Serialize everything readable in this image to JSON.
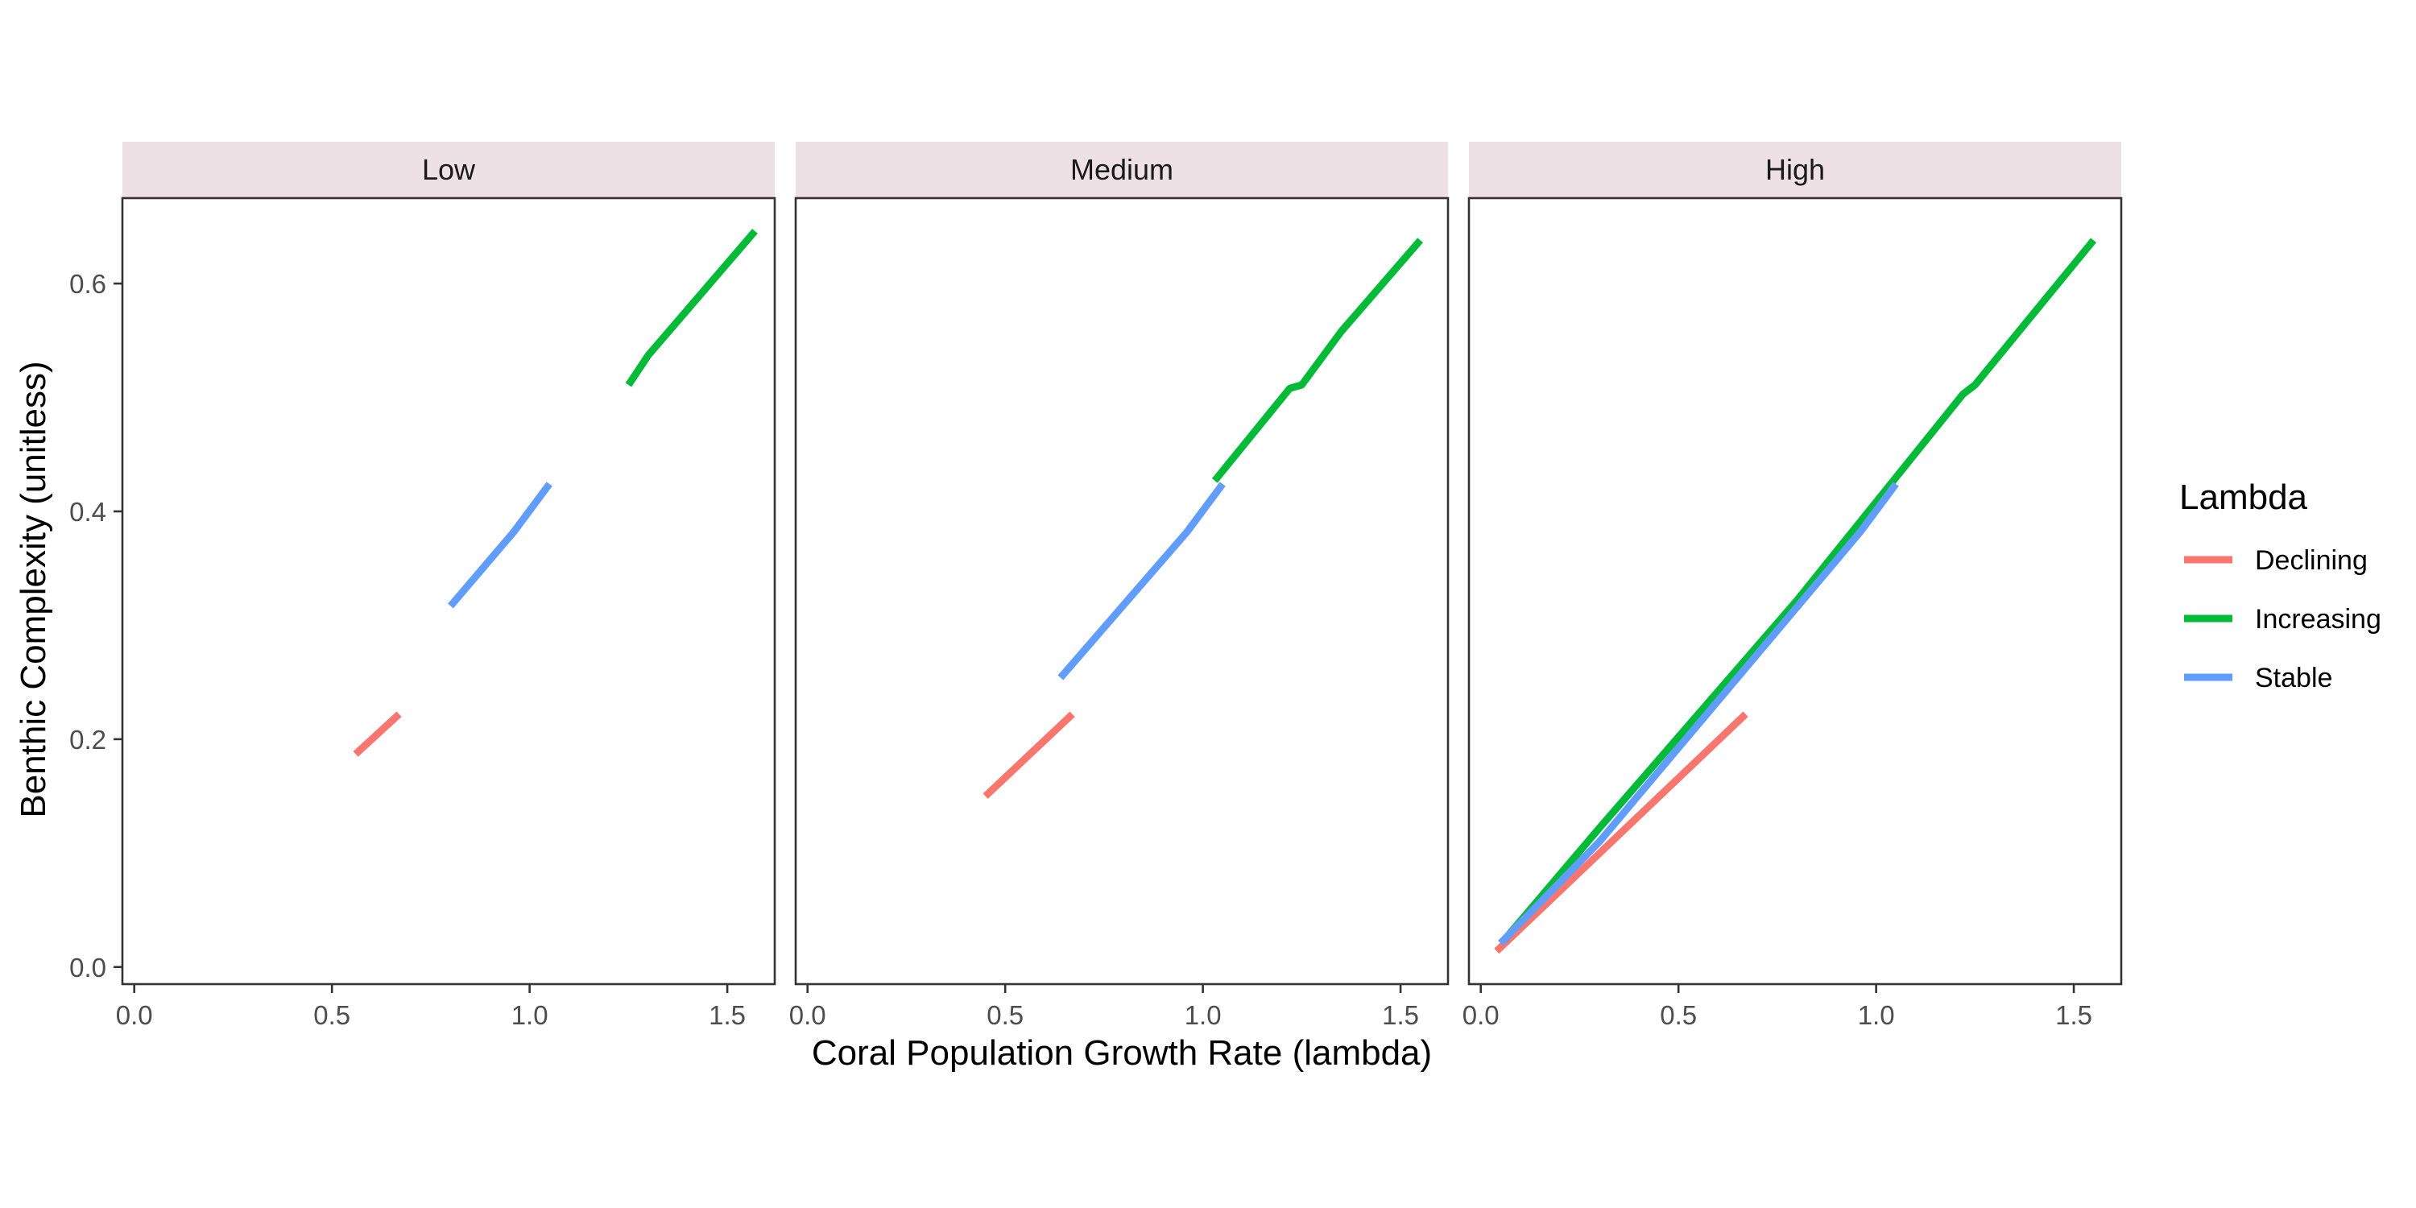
{
  "chart_data": {
    "type": "line",
    "xlabel": "Coral Population Growth Rate (lambda)",
    "ylabel": "Benthic Complexity (unitless)",
    "xlim": [
      -0.03,
      1.62
    ],
    "ylim": [
      -0.015,
      0.675
    ],
    "x_ticks": [
      0.0,
      0.5,
      1.0,
      1.5
    ],
    "x_tick_labels": [
      "0.0",
      "0.5",
      "1.0",
      "1.5"
    ],
    "y_ticks": [
      0.0,
      0.2,
      0.4,
      0.6
    ],
    "y_tick_labels": [
      "0.0",
      "0.2",
      "0.4",
      "0.6"
    ],
    "grid": false,
    "legend": {
      "title": "Lambda",
      "placement": "right",
      "entries": [
        {
          "name": "Declining",
          "color": "#F8766D"
        },
        {
          "name": "Increasing",
          "color": "#00BA38"
        },
        {
          "name": "Stable",
          "color": "#619CFF"
        }
      ]
    },
    "facets": [
      {
        "name": "Low",
        "series": [
          {
            "name": "Declining",
            "color": "#F8766D",
            "points": [
              [
                0.56,
                0.187
              ],
              [
                0.67,
                0.222
              ]
            ]
          },
          {
            "name": "Stable",
            "color": "#619CFF",
            "points": [
              [
                0.8,
                0.317
              ],
              [
                0.96,
                0.382
              ],
              [
                1.05,
                0.424
              ]
            ]
          },
          {
            "name": "Increasing",
            "color": "#00BA38",
            "points": [
              [
                1.25,
                0.511
              ],
              [
                1.3,
                0.537
              ],
              [
                1.57,
                0.646
              ]
            ]
          }
        ]
      },
      {
        "name": "Medium",
        "series": [
          {
            "name": "Declining",
            "color": "#F8766D",
            "points": [
              [
                0.45,
                0.15
              ],
              [
                0.67,
                0.222
              ]
            ]
          },
          {
            "name": "Stable",
            "color": "#619CFF",
            "points": [
              [
                0.64,
                0.254
              ],
              [
                0.96,
                0.382
              ],
              [
                1.05,
                0.424
              ]
            ]
          },
          {
            "name": "Increasing",
            "color": "#00BA38",
            "points": [
              [
                1.03,
                0.427
              ],
              [
                1.22,
                0.508
              ],
              [
                1.25,
                0.511
              ],
              [
                1.35,
                0.558
              ],
              [
                1.55,
                0.638
              ]
            ]
          }
        ]
      },
      {
        "name": "High",
        "series": [
          {
            "name": "Declining",
            "color": "#F8766D",
            "points": [
              [
                0.04,
                0.014
              ],
              [
                0.67,
                0.222
              ]
            ]
          },
          {
            "name": "Increasing",
            "color": "#00BA38",
            "points": [
              [
                0.06,
                0.024
              ],
              [
                0.3,
                0.122
              ],
              [
                0.8,
                0.322
              ],
              [
                1.22,
                0.503
              ],
              [
                1.25,
                0.511
              ],
              [
                1.55,
                0.638
              ]
            ]
          },
          {
            "name": "Stable",
            "color": "#619CFF",
            "points": [
              [
                0.05,
                0.021
              ],
              [
                0.3,
                0.11
              ],
              [
                0.96,
                0.382
              ],
              [
                1.05,
                0.424
              ]
            ]
          }
        ]
      }
    ]
  }
}
